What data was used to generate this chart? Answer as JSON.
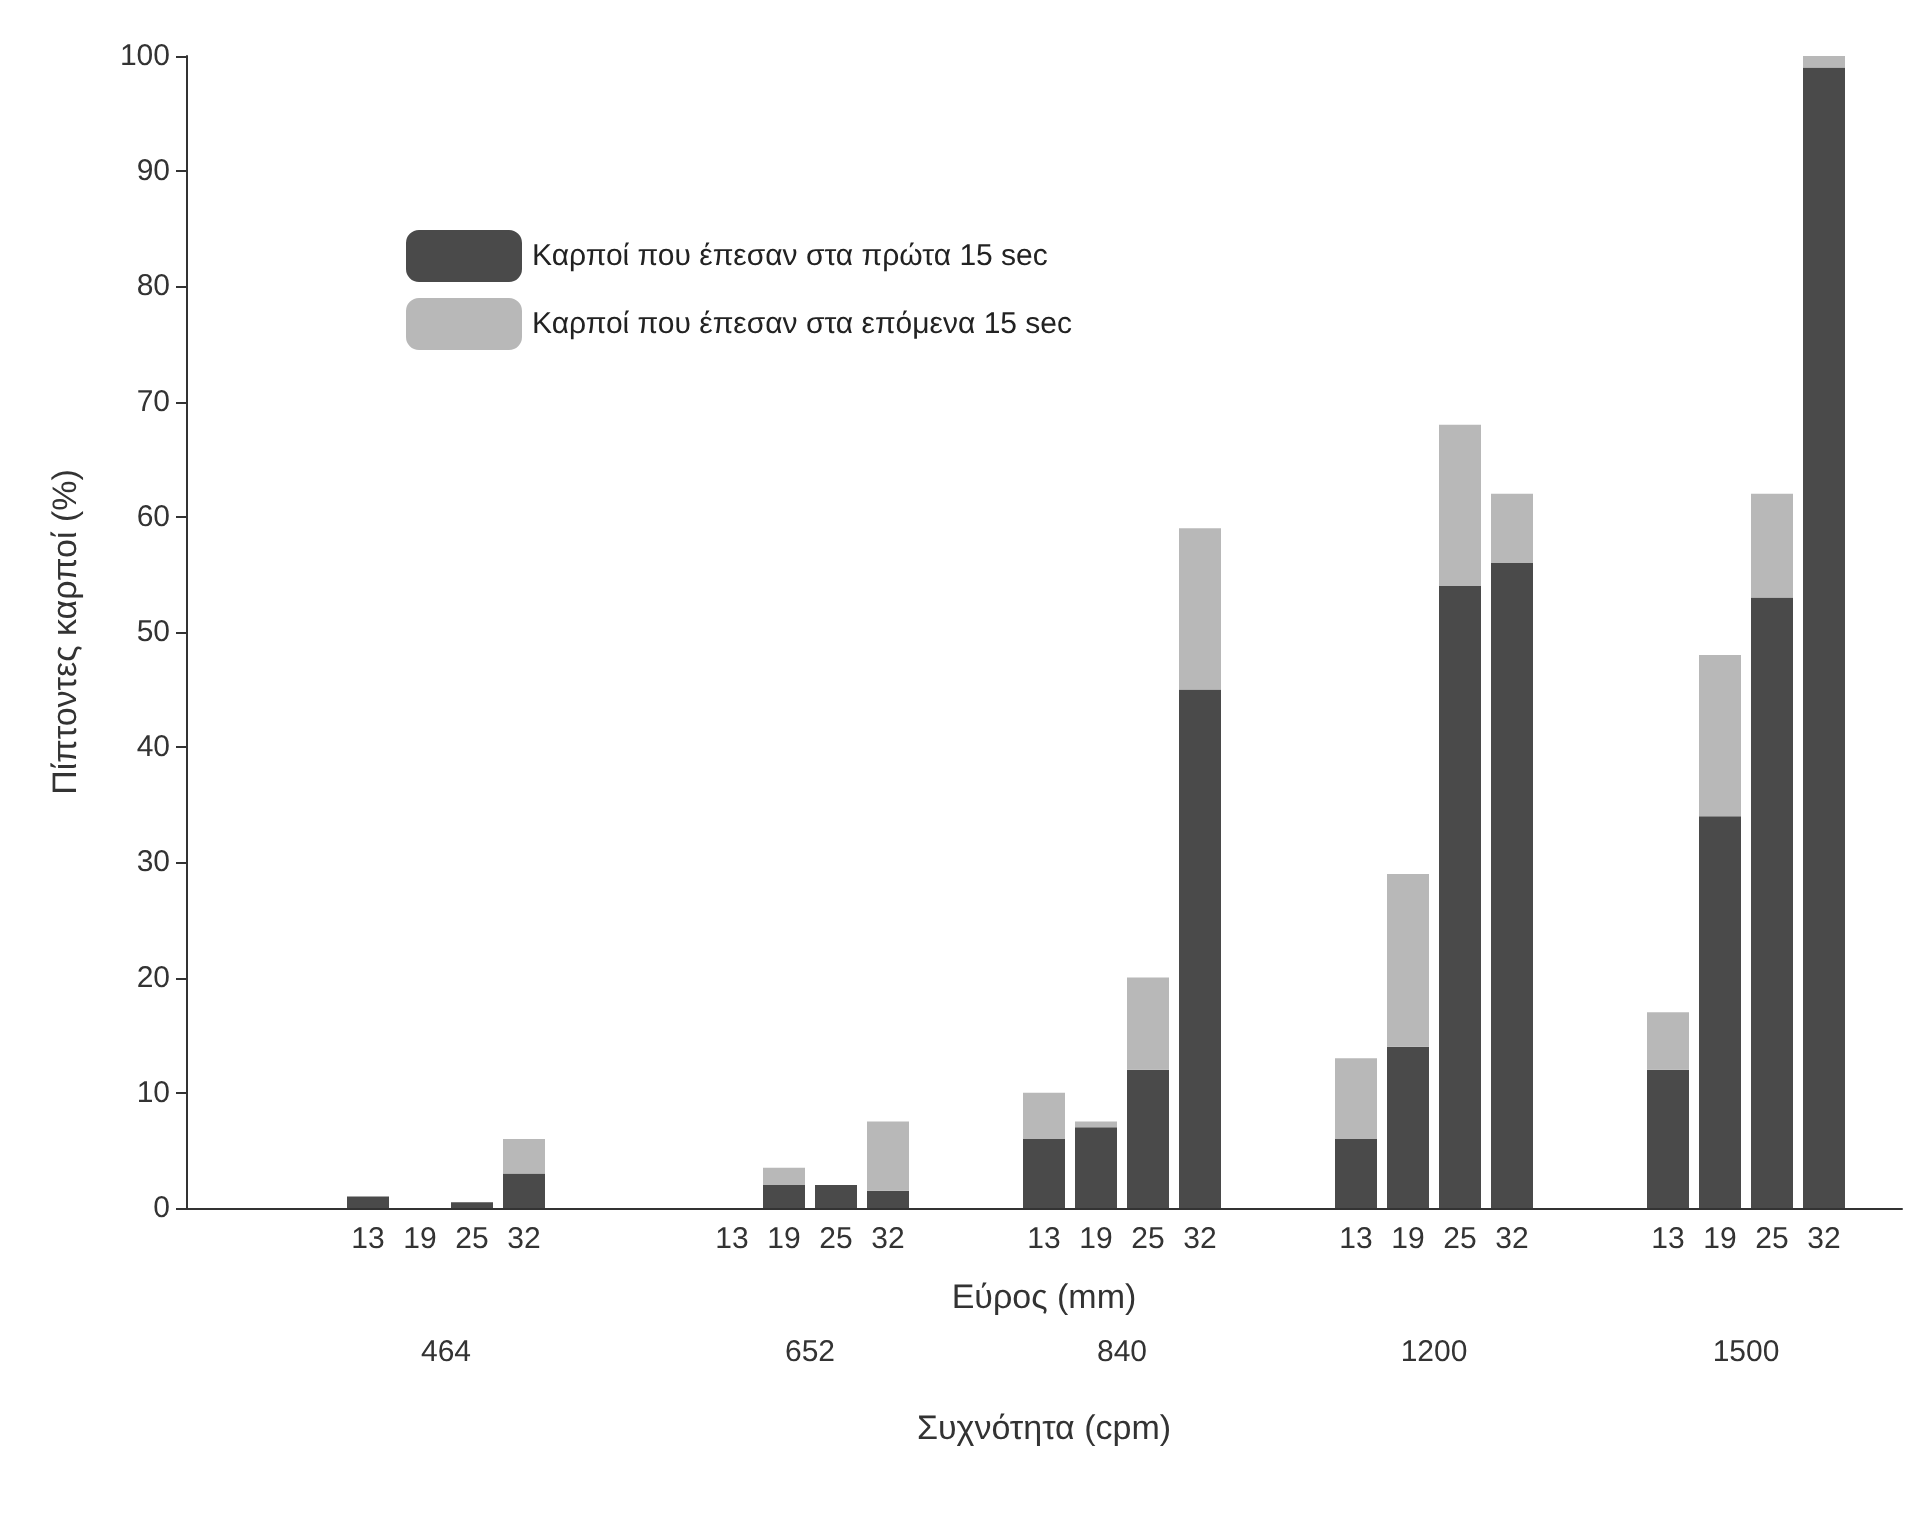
{
  "chart_data": {
    "type": "bar",
    "stacked": true,
    "xlabel": "Εύρος (mm)",
    "x2label": "Συχνότητα (cpm)",
    "ylabel": "Πίπτοντες καρποί (%)",
    "categories": [
      null,
      null,
      null,
      "13",
      "19",
      "25",
      "32",
      null,
      null,
      null,
      "13",
      "19",
      "25",
      "32",
      null,
      null,
      "13",
      "19",
      "25",
      "32",
      null,
      null,
      "13",
      "19",
      "25",
      "32",
      null,
      null,
      "13",
      "19",
      "25",
      "32",
      null
    ],
    "series": [
      {
        "name": "Καρποί που έπεσαν στα πρώτα 15 sec",
        "color": "#4a4a4a",
        "values": [
          null,
          null,
          null,
          1,
          0,
          0.5,
          3,
          null,
          null,
          null,
          0,
          2,
          2,
          1.5,
          null,
          null,
          6,
          7,
          12,
          45,
          null,
          null,
          6,
          14,
          54,
          56,
          null,
          null,
          12,
          34,
          53,
          99,
          null
        ]
      },
      {
        "name": "Καρποί που έπεσαν στα επόμενα 15 sec",
        "color": "#b8b8b8",
        "values": [
          null,
          null,
          null,
          0,
          0,
          0,
          3,
          null,
          null,
          null,
          0,
          1.5,
          0,
          6,
          null,
          null,
          4,
          0.5,
          8,
          14,
          null,
          null,
          7,
          15,
          14,
          6,
          null,
          null,
          5,
          14,
          9,
          1,
          null
        ]
      }
    ],
    "annotations": [
      "464",
      "652",
      "840",
      "1200",
      "1500"
    ],
    "ylim": [
      0,
      100
    ],
    "yticks": [
      0,
      10,
      20,
      30,
      40,
      50,
      60,
      70,
      80,
      90,
      100
    ],
    "grid": false,
    "legend": "top left"
  }
}
